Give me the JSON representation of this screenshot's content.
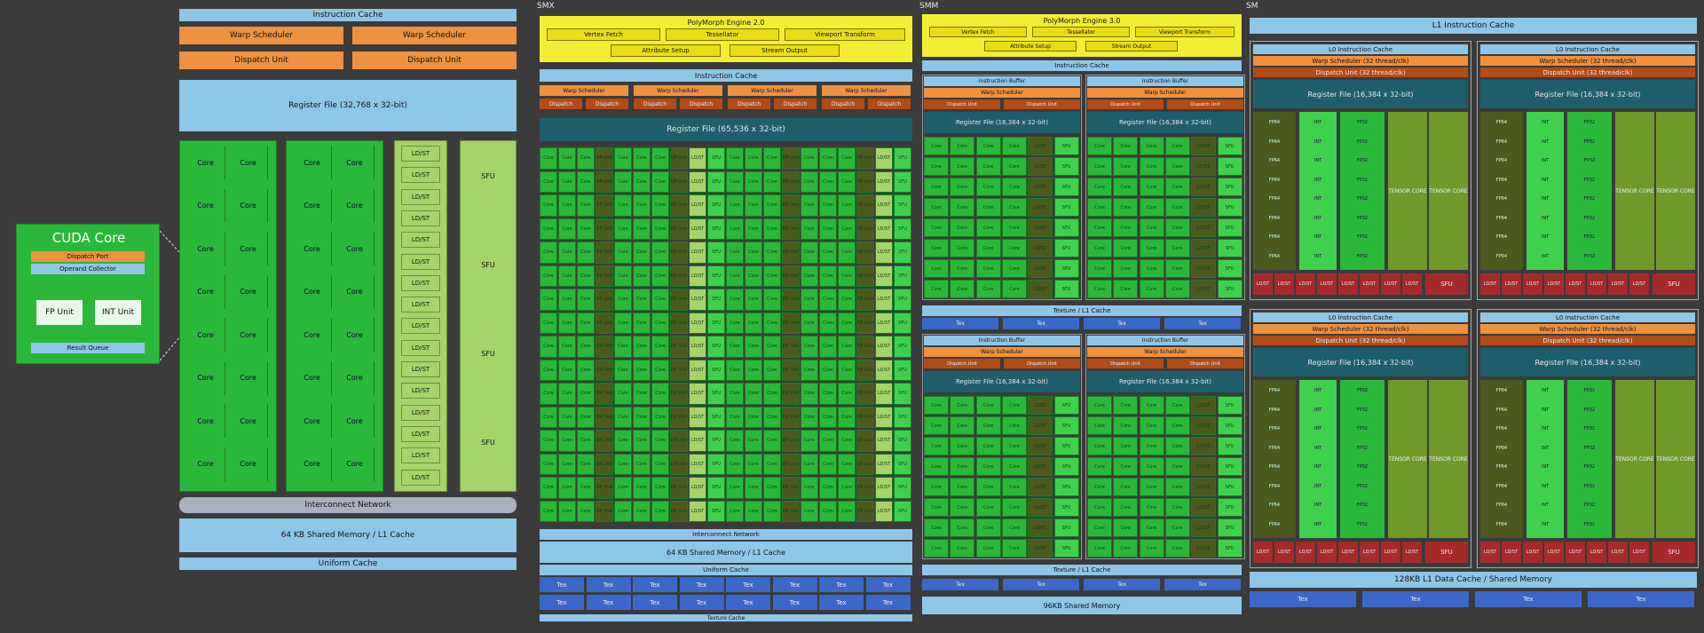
{
  "fermi": {
    "instruction_cache": "Instruction Cache",
    "warp_scheduler": "Warp Scheduler",
    "dispatch_unit": "Dispatch Unit",
    "register_file": "Register File (32,768 x 32-bit)",
    "core": "Core",
    "ldst": "LD/ST",
    "sfu": "SFU",
    "interconnect": "Interconnect Network",
    "shared_memory": "64 KB Shared Memory / L1 Cache",
    "uniform_cache": "Uniform Cache"
  },
  "cuda_core": {
    "title": "CUDA Core",
    "dispatch_port": "Dispatch Port",
    "operand_collector": "Operand Collector",
    "fp_unit": "FP Unit",
    "int_unit": "INT Unit",
    "result_queue": "Result Queue"
  },
  "smx": {
    "title": "SMX",
    "polymorph": "PolyMorph Engine 2.0",
    "vertex_fetch": "Vertex Fetch",
    "tessellator": "Tessellator",
    "viewport_transform": "Viewport Transform",
    "attribute_setup": "Attribute Setup",
    "stream_output": "Stream Output",
    "instruction_cache": "Instruction Cache",
    "warp_scheduler": "Warp Scheduler",
    "dispatch": "Dispatch",
    "register_file": "Register File (65,536 x 32-bit)",
    "core": "Core",
    "dp": "DP Unit",
    "ldst": "LD/ST",
    "sfu": "SFU",
    "interconnect": "Interconnect Network",
    "shared_memory": "64 KB Shared Memory / L1 Cache",
    "uniform_cache": "Uniform Cache",
    "tex": "Tex",
    "texture_cache": "Texture Cache"
  },
  "smm": {
    "title": "SMM",
    "polymorph": "PolyMorph Engine 3.0",
    "vertex_fetch": "Vertex Fetch",
    "tessellator": "Tessellator",
    "viewport_transform": "Viewport Transform",
    "attribute_setup": "Attribute Setup",
    "stream_output": "Stream Output",
    "instruction_cache": "Instruction Cache",
    "instruction_buffer": "Instruction Buffer",
    "warp_scheduler": "Warp Scheduler",
    "dispatch_unit": "Dispatch Unit",
    "register_file": "Register File (16,384 x 32-bit)",
    "core": "Core",
    "ldst": "LD/ST",
    "sfu": "SFU",
    "tex_l1": "Texture / L1 Cache",
    "tex": "Tex",
    "shared_memory": "96KB Shared Memory"
  },
  "sm": {
    "title": "SM",
    "l1_instruction_cache": "L1 Instruction Cache",
    "l0_instruction_cache": "L0 Instruction Cache",
    "warp_scheduler": "Warp Scheduler (32 thread/clk)",
    "dispatch_unit": "Dispatch Unit (32 thread/clk)",
    "register_file": "Register File (16,384 x 32-bit)",
    "fp64": "FP64",
    "int": "INT",
    "fp32": "FP32",
    "tensor_core": "TENSOR CORE",
    "ldst": "LD/ST",
    "sfu": "SFU",
    "l1_data_cache": "128KB L1 Data Cache / Shared Memory",
    "tex": "Tex"
  },
  "colors": {
    "background": "#3b3b3b",
    "core_green": "#2ab83a",
    "cache_blue": "#8ec6e8",
    "scheduler_orange": "#f0913d",
    "polymorph_yellow": "#f2ee32",
    "register_teal": "#1f5e6c",
    "tex_blue": "#3b67c9"
  }
}
